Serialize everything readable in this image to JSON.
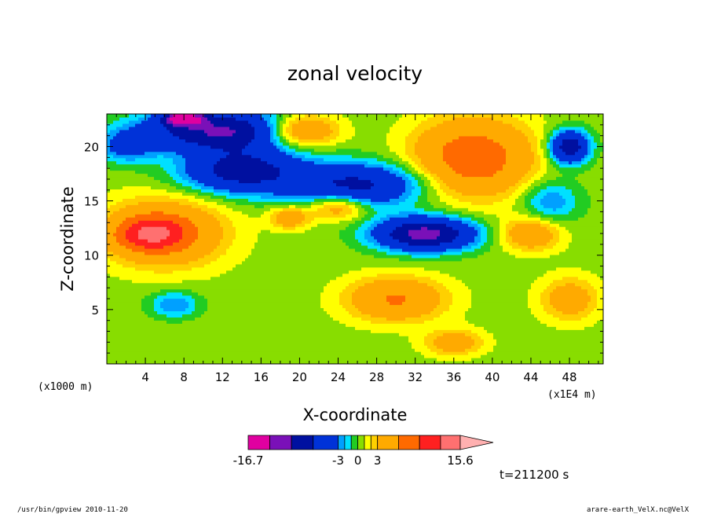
{
  "chart_data": {
    "type": "heatmap",
    "title": "zonal velocity",
    "xlabel": "X-coordinate",
    "ylabel": "Z-coordinate",
    "x_unit": "(x1000 m)",
    "x_scale_note": "(x1E4 m)",
    "xlim": [
      0,
      51.5
    ],
    "ylim": [
      0,
      23
    ],
    "x_ticks": [
      "4",
      "8",
      "12",
      "16",
      "20",
      "24",
      "28",
      "32",
      "36",
      "40",
      "44",
      "48"
    ],
    "x_tick_values": [
      4,
      8,
      12,
      16,
      20,
      24,
      28,
      32,
      36,
      40,
      44,
      48
    ],
    "y_ticks": [
      "5",
      "10",
      "15",
      "20"
    ],
    "y_tick_values": [
      5,
      10,
      15,
      20
    ],
    "colorbar": {
      "labels": [
        "-16.7",
        "-3",
        "0",
        "3",
        "15.6"
      ],
      "colors": [
        "#e000a0",
        "#7a10b8",
        "#0010a0",
        "#0032d8",
        "#00a0ff",
        "#00e0ff",
        "#22cc22",
        "#88dd00",
        "#ffff00",
        "#ffd000",
        "#ffaa00",
        "#ff6a00",
        "#ff2020",
        "#ff7070",
        "#ffb0b0"
      ],
      "values": [
        -16.7,
        -13.4,
        -10.1,
        -6.8,
        -3,
        -2,
        -1,
        0,
        1,
        2,
        3,
        6.2,
        9.4,
        12.6,
        15.6
      ]
    },
    "annotation": "t=211200 s",
    "blobs": [
      {
        "x": 6,
        "z": 12.1,
        "rx": 6,
        "rz": 3,
        "v": 6.5
      },
      {
        "x": 4.5,
        "z": 12,
        "rx": 3.5,
        "rz": 1.5,
        "v": 8
      },
      {
        "x": 14,
        "z": 17.8,
        "rx": 6,
        "rz": 2,
        "v": -9
      },
      {
        "x": 12,
        "z": 21.5,
        "rx": 8,
        "rz": 1.8,
        "v": -11
      },
      {
        "x": 8,
        "z": 22.6,
        "rx": 2,
        "rz": 0.6,
        "v": -15
      },
      {
        "x": 20,
        "z": 21.5,
        "rx": 4,
        "rz": 1.5,
        "v": 8
      },
      {
        "x": 26,
        "z": 16.5,
        "rx": 7,
        "rz": 2,
        "v": -8
      },
      {
        "x": 33,
        "z": 12,
        "rx": 5,
        "rz": 1.5,
        "v": -12
      },
      {
        "x": 38,
        "z": 19,
        "rx": 6,
        "rz": 3.5,
        "v": 8
      },
      {
        "x": 48,
        "z": 20,
        "rx": 2,
        "rz": 1.5,
        "v": -10
      },
      {
        "x": 30,
        "z": 6,
        "rx": 5,
        "rz": 2,
        "v": 6
      },
      {
        "x": 7,
        "z": 5.5,
        "rx": 2.5,
        "rz": 1.2,
        "v": -3.5
      },
      {
        "x": 2,
        "z": 20,
        "rx": 3,
        "rz": 1.5,
        "v": -4
      },
      {
        "x": 24,
        "z": 14.5,
        "rx": 3,
        "rz": 1.2,
        "v": 5
      },
      {
        "x": 19,
        "z": 13.5,
        "rx": 2,
        "rz": 1,
        "v": 4.5
      },
      {
        "x": 46,
        "z": 15,
        "rx": 3,
        "rz": 2,
        "v": -3.5
      },
      {
        "x": 44,
        "z": 12,
        "rx": 3,
        "rz": 1.5,
        "v": 5
      },
      {
        "x": 48,
        "z": 6,
        "rx": 3,
        "rz": 2,
        "v": 4
      },
      {
        "x": 36,
        "z": 2,
        "rx": 3,
        "rz": 1.2,
        "v": 4
      }
    ]
  },
  "footer": {
    "left": "/usr/bin/gpview   2010-11-20",
    "right": "arare-earth_VelX.nc@VelX"
  }
}
